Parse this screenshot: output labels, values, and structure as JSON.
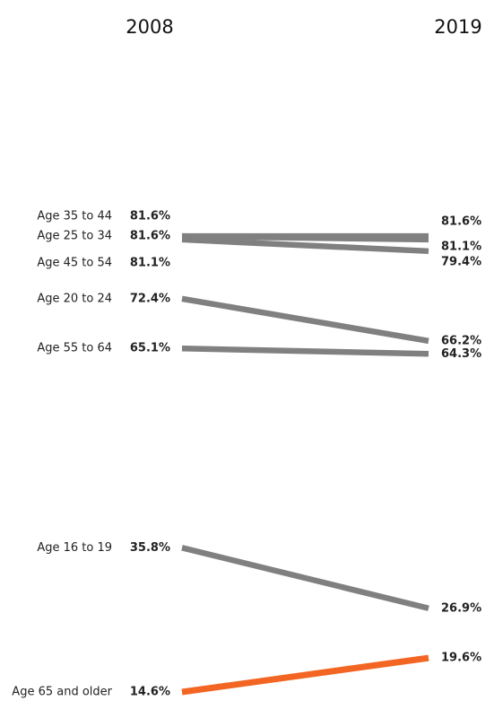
{
  "chart_data": {
    "type": "line",
    "x": [
      "2008",
      "2019"
    ],
    "highlight_color": "#f26522",
    "line_color": "#808080",
    "series": [
      {
        "name": "Age 35 to 44",
        "values": [
          81.6,
          81.6
        ],
        "labels": [
          "81.6%",
          "81.6%"
        ]
      },
      {
        "name": "Age 25 to 34",
        "values": [
          81.6,
          81.1
        ],
        "labels": [
          "81.6%",
          "81.1%"
        ]
      },
      {
        "name": "Age 45 to 54",
        "values": [
          81.1,
          79.4
        ],
        "labels": [
          "81.1%",
          "79.4%"
        ]
      },
      {
        "name": "Age 20 to 24",
        "values": [
          72.4,
          66.2
        ],
        "labels": [
          "72.4%",
          "66.2%"
        ]
      },
      {
        "name": "Age 55 to 64",
        "values": [
          65.1,
          64.3
        ],
        "labels": [
          "65.1%",
          "64.3%"
        ]
      },
      {
        "name": "Age 16 to 19",
        "values": [
          35.8,
          26.9
        ],
        "labels": [
          "35.8%",
          "26.9%"
        ]
      },
      {
        "name": "Age 65 and older",
        "values": [
          14.6,
          19.6
        ],
        "labels": [
          "14.6%",
          "19.6%"
        ],
        "highlight": true
      }
    ]
  }
}
